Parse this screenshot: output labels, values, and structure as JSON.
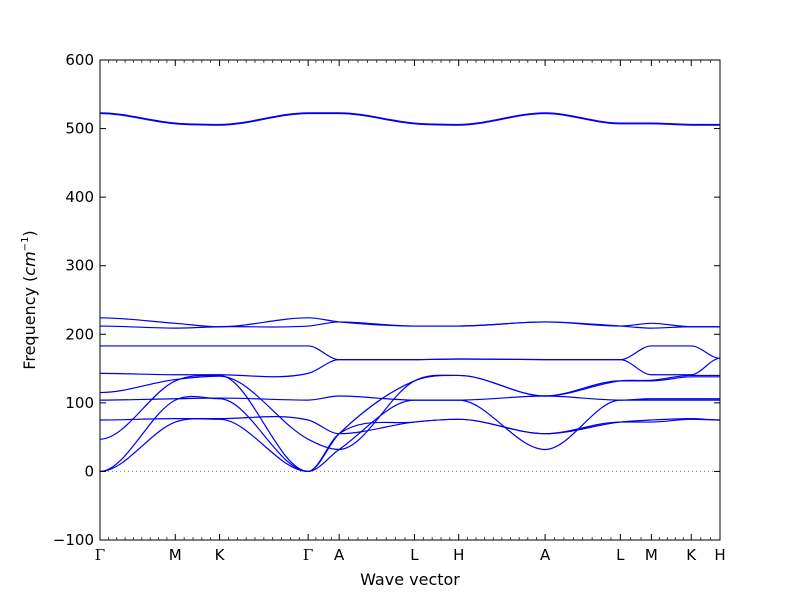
{
  "chart_data": {
    "type": "line",
    "title": "",
    "xlabel": "Wave vector",
    "ylabel": "Frequency",
    "ylabel_unit": "cm",
    "ylabel_unit_exp": "−1",
    "ylim": [
      -100,
      600
    ],
    "yticks": [
      -100,
      0,
      100,
      200,
      300,
      400,
      500,
      600
    ],
    "xlim": [
      0,
      14
    ],
    "high_symmetry_points": [
      {
        "label": "Γ",
        "x": 0
      },
      {
        "label": "M",
        "x": 1.7
      },
      {
        "label": "K",
        "x": 2.7
      },
      {
        "label": "Γ",
        "x": 4.7
      },
      {
        "label": "A",
        "x": 5.4
      },
      {
        "label": "L",
        "x": 7.1
      },
      {
        "label": "H",
        "x": 8.1
      },
      {
        "label": "A",
        "x": 10.05
      },
      {
        "label": "L",
        "x": 11.75
      },
      {
        "label": "M",
        "x": 12.45
      },
      {
        "label": "K",
        "x": 13.35
      },
      {
        "label": "H",
        "x": 14
      }
    ],
    "zero_line": {
      "y": 0,
      "style": "dotted",
      "color": "#808080"
    },
    "line_color": "#0000ee",
    "grid": false,
    "series": [
      {
        "x": [
          0,
          1.7,
          2.7,
          4.7,
          5.4,
          7.1,
          8.1,
          10.05,
          11.75,
          12.45,
          13.35,
          14
        ],
        "values": [
          0,
          72,
          76,
          0,
          55,
          72,
          76,
          55,
          72,
          72,
          76,
          75
        ]
      },
      {
        "x": [
          0,
          1.7,
          2.7,
          4.7,
          5.4,
          7.1,
          8.1,
          10.05,
          11.75,
          12.45,
          13.35,
          14
        ],
        "values": [
          0,
          104,
          106,
          0,
          32,
          104,
          104,
          32,
          104,
          104,
          104,
          104
        ]
      },
      {
        "x": [
          0,
          1.7,
          2.7,
          4.7,
          5.4,
          7.1,
          8.1,
          10.05,
          11.75,
          12.45,
          13.35,
          14
        ],
        "values": [
          47,
          132,
          140,
          0,
          55,
          132,
          140,
          110,
          132,
          132,
          138,
          138
        ]
      },
      {
        "x": [
          0,
          1.7,
          2.7,
          4.7,
          5.4,
          7.1,
          8.1,
          10.05,
          11.75,
          12.45,
          13.35,
          14
        ],
        "values": [
          75,
          77,
          77,
          75,
          55,
          72,
          76,
          55,
          72,
          75,
          77,
          75
        ]
      },
      {
        "x": [
          0,
          1.7,
          2.7,
          4.7,
          5.4,
          7.1,
          8.1,
          10.05,
          11.75,
          12.45,
          13.35,
          14
        ],
        "values": [
          104,
          106,
          107,
          104,
          110,
          104,
          104,
          110,
          104,
          106,
          106,
          106
        ]
      },
      {
        "x": [
          0,
          1.7,
          2.7,
          4.7,
          5.4,
          7.1,
          8.1,
          10.05,
          11.75,
          12.45,
          13.35,
          14
        ],
        "values": [
          115,
          134,
          139,
          47,
          32,
          132,
          140,
          110,
          132,
          133,
          140,
          140
        ]
      },
      {
        "x": [
          0,
          1.7,
          2.7,
          4.7,
          5.4,
          7.1,
          8.1,
          10.05,
          11.75,
          12.45,
          13.35,
          14
        ],
        "values": [
          143,
          141,
          141,
          143,
          163,
          163,
          164,
          163,
          163,
          141,
          141,
          165
        ]
      },
      {
        "x": [
          0,
          1.7,
          2.7,
          4.7,
          5.4,
          7.1,
          8.1,
          10.05,
          11.75,
          12.45,
          13.35,
          14
        ],
        "values": [
          183,
          183,
          183,
          183,
          163,
          163,
          164,
          163,
          163,
          183,
          183,
          165
        ]
      },
      {
        "x": [
          0,
          1.7,
          2.7,
          4.7,
          5.4,
          7.1,
          8.1,
          10.05,
          11.75,
          12.45,
          13.35,
          14
        ],
        "values": [
          212,
          209,
          211,
          212,
          218,
          212,
          212,
          218,
          212,
          209,
          211,
          211
        ]
      },
      {
        "x": [
          0,
          1.7,
          2.7,
          4.7,
          5.4,
          7.1,
          8.1,
          10.05,
          11.75,
          12.45,
          13.35,
          14
        ],
        "values": [
          224,
          216,
          211,
          224,
          218,
          212,
          212,
          218,
          212,
          216,
          211,
          211
        ]
      },
      {
        "x": [
          0,
          1.7,
          2.7,
          4.7,
          5.4,
          7.1,
          8.1,
          10.05,
          11.75,
          12.45,
          13.35,
          14
        ],
        "values": [
          522,
          507,
          505,
          522,
          522,
          507,
          505,
          522,
          507,
          507,
          505,
          505
        ]
      },
      {
        "x": [
          0,
          1.7,
          2.7,
          4.7,
          5.4,
          7.1,
          8.1,
          10.05,
          11.75,
          12.45,
          13.35,
          14
        ],
        "values": [
          523,
          508,
          506,
          523,
          523,
          508,
          506,
          523,
          508,
          508,
          506,
          506
        ]
      }
    ]
  }
}
